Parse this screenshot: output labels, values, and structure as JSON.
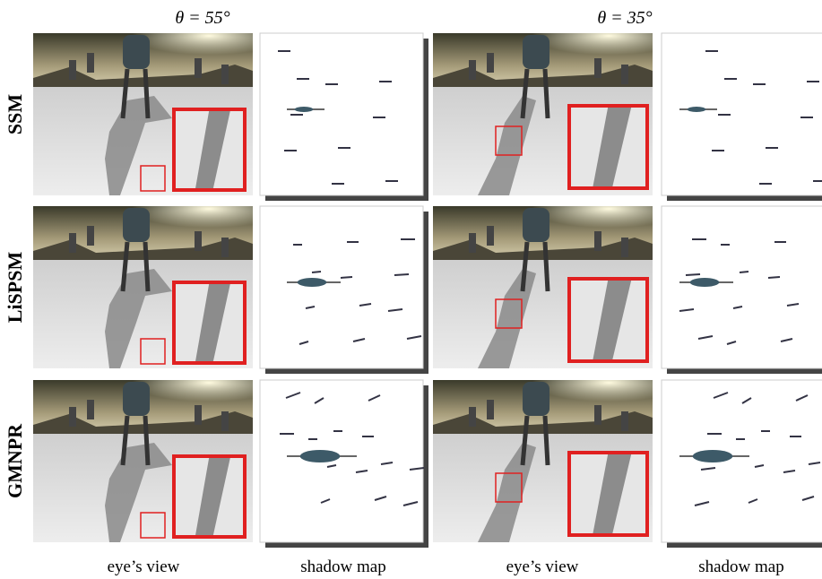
{
  "column_headers": [
    "θ = 55°",
    "θ = 35°"
  ],
  "row_labels": [
    "SSM",
    "LiSPSM",
    "GMNPR"
  ],
  "footer_labels": [
    "eye’s view",
    "shadow map",
    "eye’s view",
    "shadow map"
  ]
}
